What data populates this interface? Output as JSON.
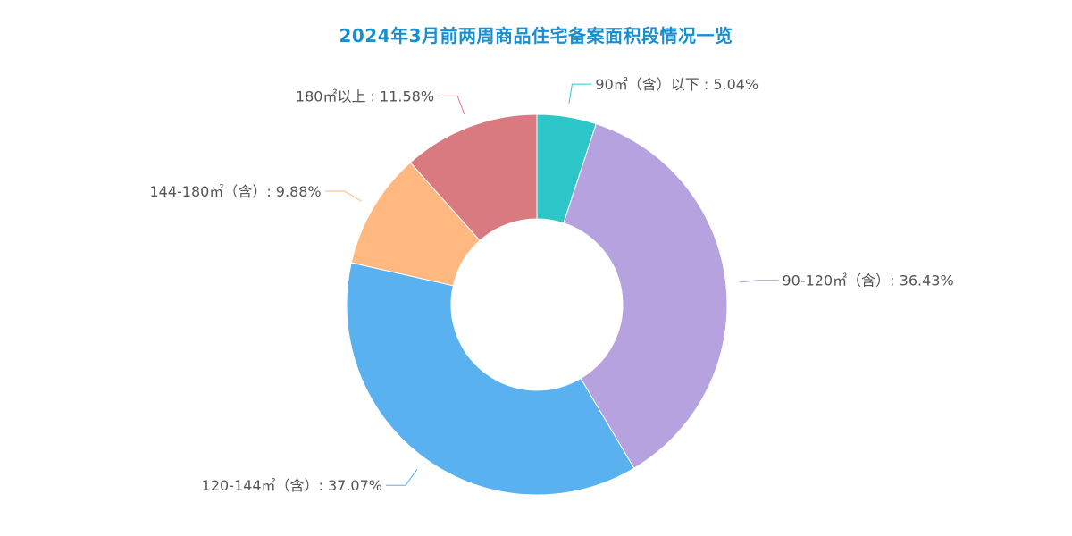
{
  "chart_data": {
    "type": "pie",
    "title": "2024年3月前两周商品住宅备案面积段情况一览",
    "donut": true,
    "slices": [
      {
        "label": "90㎡（含）以下",
        "value": 5.04,
        "display": "90㎡（含）以下 : 5.04%",
        "color": "#2ec7c9"
      },
      {
        "label": "90-120㎡（含）",
        "value": 36.43,
        "display": "90-120㎡（含）: 36.43%",
        "color": "#b6a2de"
      },
      {
        "label": "120-144㎡（含）",
        "value": 37.07,
        "display": "120-144㎡（含）: 37.07%",
        "color": "#5ab1ef"
      },
      {
        "label": "144-180㎡（含）",
        "value": 9.88,
        "display": "144-180㎡（含）: 9.88%",
        "color": "#ffb980"
      },
      {
        "label": "180㎡以上",
        "value": 11.58,
        "display": "180㎡以上 : 11.58%",
        "color": "#d87a80"
      }
    ]
  }
}
